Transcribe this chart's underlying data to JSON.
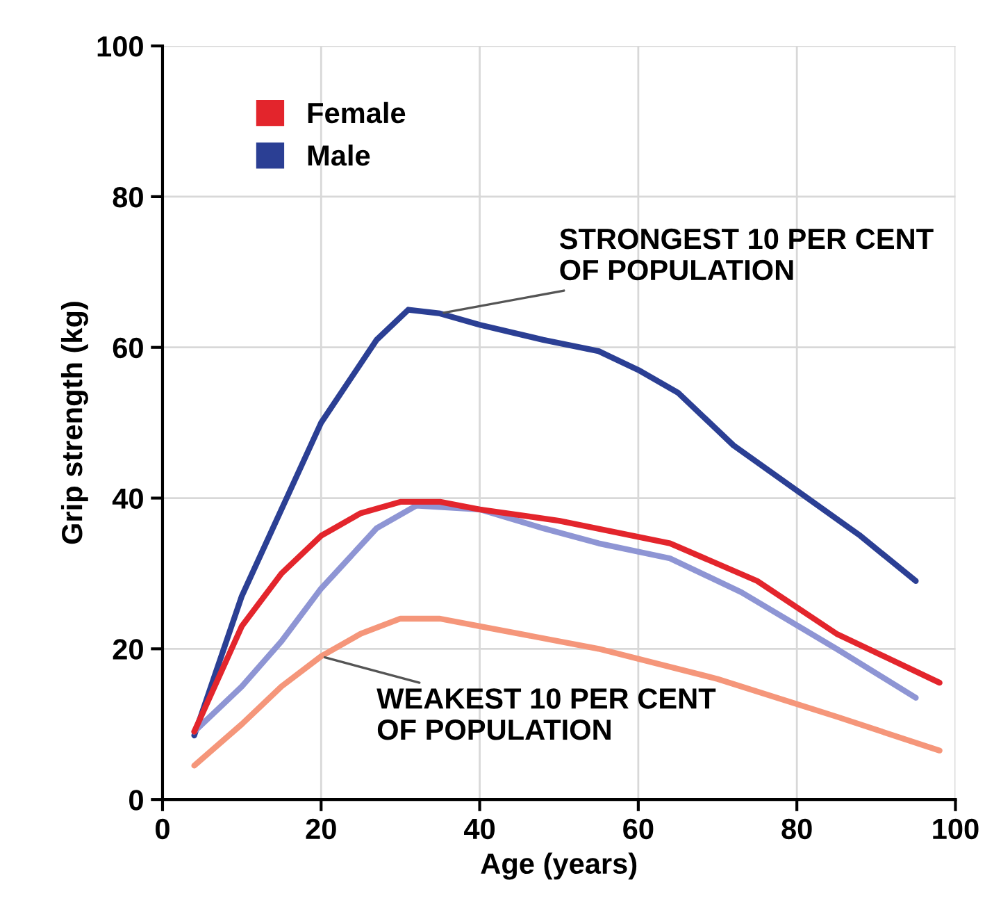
{
  "chart_data": {
    "type": "line",
    "xlabel": "Age (years)",
    "ylabel": "Grip strength (kg)",
    "xlim": [
      0,
      100
    ],
    "ylim": [
      0,
      100
    ],
    "xticks": [
      0,
      20,
      40,
      60,
      80,
      100
    ],
    "yticks": [
      0,
      20,
      40,
      60,
      80,
      100
    ],
    "grid": true,
    "legend": "top left",
    "line_style": "solid",
    "series": [
      {
        "name": "Male",
        "color": "#2b3f94",
        "x": [
          4,
          10,
          20,
          27,
          31,
          35,
          40,
          48,
          55,
          60,
          65,
          72,
          80,
          88,
          95
        ],
        "values": [
          8.5,
          27,
          50,
          61,
          65,
          64.5,
          63,
          61,
          59.5,
          57,
          54,
          47,
          41,
          35,
          29
        ]
      },
      {
        "color": "#8e95d4",
        "x": [
          4,
          10,
          15,
          20,
          27,
          32,
          40,
          48,
          55,
          64,
          73,
          85,
          95
        ],
        "values": [
          9,
          15,
          21,
          28,
          36,
          39,
          38.5,
          36,
          34,
          32,
          27.5,
          20,
          13.5
        ]
      },
      {
        "name": "Female",
        "color": "#e3252c",
        "x": [
          4,
          10,
          15,
          20,
          25,
          30,
          35,
          40,
          50,
          64,
          75,
          85,
          98
        ],
        "values": [
          9,
          23,
          30,
          35,
          38,
          39.5,
          39.5,
          38.5,
          37,
          34,
          29,
          22,
          15.5
        ]
      },
      {
        "color": "#f5967a",
        "x": [
          4,
          10,
          15,
          20,
          25,
          30,
          35,
          40,
          55,
          70,
          85,
          98
        ],
        "values": [
          4.5,
          10,
          15,
          19,
          22,
          24,
          24,
          23,
          20,
          16,
          11,
          6.5
        ]
      }
    ],
    "annotations": [
      {
        "text": "STRONGEST 10 PER CENT\nOF POPULATION",
        "x": 35,
        "y": 64.5
      },
      {
        "text": "WEAKEST 10 PER CENT\nOF POPULATION",
        "x": 20,
        "y": 19
      }
    ]
  }
}
